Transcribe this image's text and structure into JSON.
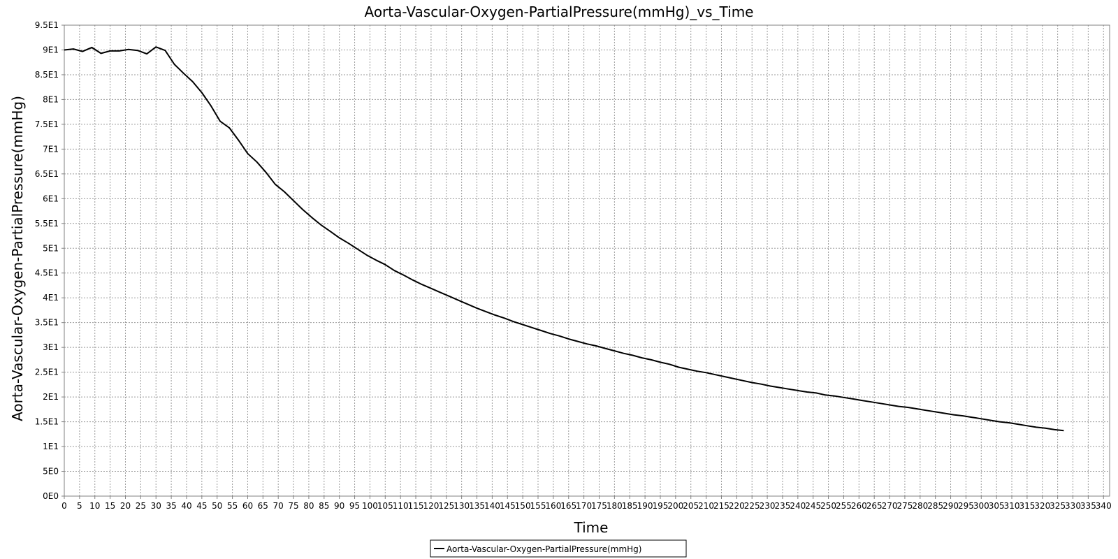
{
  "chart_data": {
    "type": "line",
    "title": "Aorta-Vascular-Oxygen-PartialPressure(mmHg)_vs_Time",
    "xlabel": "Time",
    "ylabel": "Aorta-Vascular-Oxygen-PartialPressure(mmHg)",
    "xlim": [
      0,
      342
    ],
    "ylim": [
      0,
      95
    ],
    "grid": true,
    "legend_position": "bottom-center",
    "x_ticks": [
      "0",
      "5",
      "10",
      "15",
      "20",
      "25",
      "30",
      "35",
      "40",
      "45",
      "50",
      "55",
      "60",
      "65",
      "70",
      "75",
      "80",
      "85",
      "90",
      "95",
      "100",
      "105",
      "110",
      "115",
      "120",
      "125",
      "130",
      "135",
      "140",
      "145",
      "150",
      "155",
      "160",
      "165",
      "170",
      "175",
      "180",
      "185",
      "190",
      "195",
      "200",
      "205",
      "210",
      "215",
      "220",
      "225",
      "230",
      "235",
      "240",
      "245",
      "250",
      "255",
      "260",
      "265",
      "270",
      "275",
      "280",
      "285",
      "290",
      "295",
      "300",
      "305",
      "310",
      "315",
      "320",
      "325",
      "330",
      "335",
      "340"
    ],
    "y_ticks": [
      {
        "value": 0,
        "label": "0E0"
      },
      {
        "value": 5,
        "label": "5E0"
      },
      {
        "value": 10,
        "label": "1E1"
      },
      {
        "value": 15,
        "label": "1.5E1"
      },
      {
        "value": 20,
        "label": "2E1"
      },
      {
        "value": 25,
        "label": "2.5E1"
      },
      {
        "value": 30,
        "label": "3E1"
      },
      {
        "value": 35,
        "label": "3.5E1"
      },
      {
        "value": 40,
        "label": "4E1"
      },
      {
        "value": 45,
        "label": "4.5E1"
      },
      {
        "value": 50,
        "label": "5E1"
      },
      {
        "value": 55,
        "label": "5.5E1"
      },
      {
        "value": 60,
        "label": "6E1"
      },
      {
        "value": 65,
        "label": "6.5E1"
      },
      {
        "value": 70,
        "label": "7E1"
      },
      {
        "value": 75,
        "label": "7.5E1"
      },
      {
        "value": 80,
        "label": "8E1"
      },
      {
        "value": 85,
        "label": "8.5E1"
      },
      {
        "value": 90,
        "label": "9E1"
      },
      {
        "value": 95,
        "label": "9.5E1"
      }
    ],
    "series": [
      {
        "name": "Aorta-Vascular-Oxygen-PartialPressure(mmHg)",
        "color": "#000000",
        "x": [
          0,
          3,
          6,
          9,
          12,
          15,
          18,
          21,
          24,
          27,
          30,
          33,
          36,
          39,
          42,
          45,
          48,
          51,
          54,
          57,
          60,
          63,
          66,
          69,
          72,
          75,
          78,
          81,
          84,
          87,
          90,
          93,
          96,
          99,
          102,
          105,
          108,
          111,
          114,
          117,
          120,
          123,
          126,
          129,
          132,
          135,
          138,
          141,
          144,
          147,
          150,
          153,
          156,
          159,
          162,
          165,
          168,
          171,
          174,
          177,
          180,
          183,
          186,
          189,
          192,
          195,
          198,
          201,
          204,
          207,
          210,
          213,
          216,
          219,
          222,
          225,
          228,
          231,
          234,
          237,
          240,
          243,
          246,
          249,
          252,
          255,
          258,
          261,
          264,
          267,
          270,
          273,
          276,
          279,
          282,
          285,
          288,
          291,
          294,
          297,
          300,
          303,
          306,
          309,
          312,
          315,
          318,
          321,
          324,
          327
        ],
        "values": [
          90.0,
          90.2,
          89.7,
          90.5,
          89.3,
          89.8,
          89.8,
          90.1,
          89.9,
          89.2,
          90.6,
          89.9,
          87.1,
          85.3,
          83.6,
          81.4,
          78.7,
          75.6,
          74.3,
          71.8,
          69.1,
          67.4,
          65.3,
          62.9,
          61.4,
          59.6,
          57.8,
          56.2,
          54.7,
          53.4,
          52.1,
          51.0,
          49.8,
          48.6,
          47.6,
          46.7,
          45.5,
          44.6,
          43.6,
          42.7,
          41.9,
          41.1,
          40.3,
          39.5,
          38.7,
          37.9,
          37.2,
          36.5,
          35.9,
          35.2,
          34.6,
          34.0,
          33.4,
          32.8,
          32.3,
          31.7,
          31.2,
          30.7,
          30.3,
          29.8,
          29.3,
          28.8,
          28.4,
          27.9,
          27.5,
          27.0,
          26.6,
          26.0,
          25.6,
          25.2,
          24.9,
          24.5,
          24.1,
          23.7,
          23.3,
          22.9,
          22.6,
          22.2,
          21.9,
          21.6,
          21.3,
          21.0,
          20.8,
          20.4,
          20.2,
          19.9,
          19.6,
          19.3,
          19.0,
          18.7,
          18.4,
          18.1,
          17.9,
          17.6,
          17.3,
          17.0,
          16.7,
          16.4,
          16.2,
          15.9,
          15.6,
          15.3,
          15.0,
          14.8,
          14.5,
          14.2,
          13.9,
          13.7,
          13.4,
          13.2
        ]
      }
    ]
  }
}
